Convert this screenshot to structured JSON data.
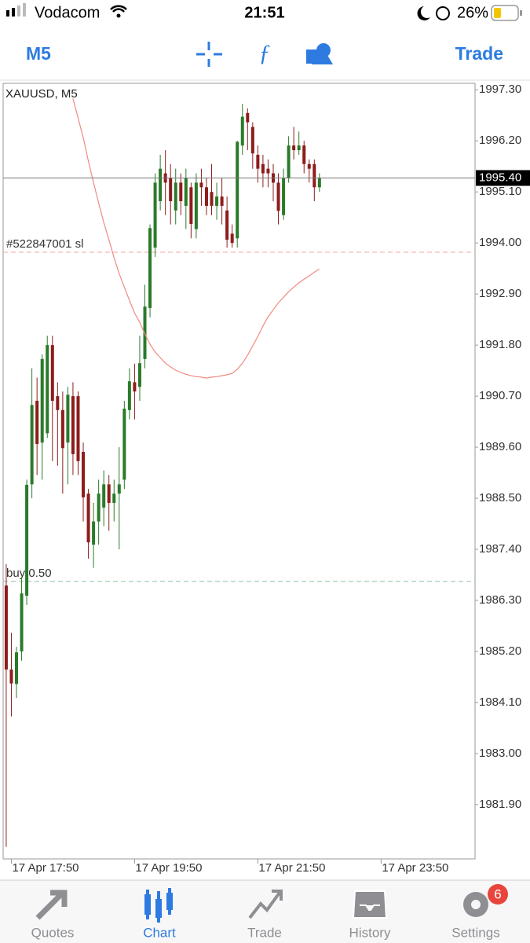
{
  "status_bar": {
    "carrier": "Vodacom",
    "time": "21:51",
    "battery": "26%"
  },
  "toolbar": {
    "timeframe": "M5",
    "trade": "Trade"
  },
  "chart_data": {
    "type": "candlestick",
    "title": "XAUUSD, M5",
    "open": [
      1986.62,
      1984.81,
      1984.5,
      1985.2,
      1986.4,
      1988.8,
      1990.6,
      1989.7,
      1989.9,
      1991.8,
      1990.7,
      1990.4,
      1989.7,
      1990.7,
      1990.7,
      1989.5,
      1988.6,
      1987.5,
      1988.0,
      1988.3,
      1988.8,
      1988.4,
      1988.6,
      1988.9,
      1990.4,
      1991.0,
      1990.9,
      1991.5,
      1992.6,
      1993.9,
      1994.9,
      1995.5,
      1995.4,
      1994.7,
      1995.3,
      1994.8,
      1995.2,
      1994.3,
      1995.3,
      1995.2,
      1995.1,
      1994.8,
      1995.0,
      1994.7,
      1994.2,
      1994.1,
      1996.1,
      1996.8,
      1996.5,
      1995.9,
      1995.7,
      1995.6,
      1995.5,
      1995.3,
      1994.6,
      1995.4,
      1996.1,
      1996.0,
      1996.1,
      1995.7,
      1995.7,
      1995.2
    ],
    "high": [
      1987.08,
      1985.6,
      1985.3,
      1986.8,
      1988.9,
      1991.3,
      1991.1,
      1991.6,
      1992.0,
      1992.0,
      1991.0,
      1990.8,
      1990.9,
      1991.0,
      1990.8,
      1989.7,
      1988.7,
      1988.4,
      1988.9,
      1989.1,
      1989.0,
      1988.9,
      1989.6,
      1990.6,
      1991.3,
      1991.4,
      1992.0,
      1993.1,
      1994.4,
      1995.5,
      1995.9,
      1996.0,
      1995.7,
      1995.6,
      1995.5,
      1995.6,
      1995.3,
      1995.5,
      1995.6,
      1995.4,
      1995.7,
      1995.3,
      1995.4,
      1995.0,
      1994.4,
      1996.2,
      1997.0,
      1996.9,
      1996.6,
      1996.1,
      1995.9,
      1995.8,
      1995.7,
      1995.5,
      1995.6,
      1996.3,
      1996.5,
      1996.4,
      1996.2,
      1995.8,
      1995.8,
      1995.5
    ],
    "low": [
      1980.99,
      1983.8,
      1984.2,
      1985.0,
      1986.2,
      1988.5,
      1989.0,
      1988.9,
      1989.8,
      1989.3,
      1989.2,
      1988.6,
      1988.8,
      1989.0,
      1989.0,
      1988.0,
      1987.2,
      1987.0,
      1987.5,
      1987.9,
      1987.8,
      1988.0,
      1987.4,
      1988.7,
      1990.2,
      1990.2,
      1990.6,
      1991.3,
      1992.4,
      1993.7,
      1994.7,
      1994.6,
      1994.4,
      1994.4,
      1994.6,
      1994.3,
      1994.1,
      1994.1,
      1994.8,
      1994.6,
      1994.6,
      1994.5,
      1994.4,
      1993.9,
      1993.9,
      1993.9,
      1995.9,
      1996.0,
      1995.6,
      1995.3,
      1995.2,
      1995.2,
      1994.9,
      1994.4,
      1994.5,
      1995.3,
      1995.8,
      1995.9,
      1995.5,
      1995.3,
      1994.9,
      1995.1
    ],
    "close": [
      1984.81,
      1984.51,
      1985.18,
      1986.45,
      1988.79,
      1990.51,
      1989.67,
      1991.5,
      1991.8,
      1990.6,
      1990.4,
      1989.58,
      1990.73,
      1989.45,
      1989.3,
      1988.52,
      1987.55,
      1988.0,
      1988.6,
      1988.8,
      1988.4,
      1988.6,
      1988.8,
      1990.43,
      1991.02,
      1990.8,
      1991.41,
      1992.63,
      1994.32,
      1995.3,
      1995.6,
      1995.3,
      1994.9,
      1995.3,
      1994.9,
      1995.4,
      1994.41,
      1995.3,
      1995.2,
      1994.8,
      1994.8,
      1995.0,
      1994.8,
      1994.07,
      1994.0,
      1996.18,
      1996.72,
      1996.6,
      1995.93,
      1995.6,
      1995.5,
      1995.5,
      1995.3,
      1994.69,
      1995.4,
      1996.1,
      1996.0,
      1996.1,
      1995.7,
      1995.6,
      1995.2,
      1995.4
    ],
    "up_color": "#2a7a2a",
    "down_color": "#8e1c1c",
    "ma": {
      "color": "#f08a80",
      "values": [
        null,
        null,
        null,
        null,
        null,
        null,
        null,
        null,
        null,
        null,
        null,
        null,
        null,
        1997.11,
        1996.69,
        1996.27,
        1995.76,
        1995.3,
        1994.86,
        1994.44,
        1994.07,
        1993.68,
        1993.34,
        1993.05,
        1992.76,
        1992.49,
        1992.29,
        1992.04,
        1991.82,
        1991.65,
        1991.53,
        1991.41,
        1991.33,
        1991.26,
        1991.21,
        1991.17,
        1991.14,
        1991.12,
        1991.11,
        1991.09,
        1991.11,
        1991.12,
        1991.14,
        1991.16,
        1991.19,
        1991.28,
        1991.41,
        1991.58,
        1991.78,
        1991.99,
        1992.21,
        1992.41,
        1992.56,
        1992.71,
        1992.83,
        1992.95,
        1993.05,
        1993.14,
        1993.22,
        1993.29,
        1993.37,
        1993.44
      ]
    },
    "xlim": [
      -0.6,
      91.3
    ],
    "xticks": [
      {
        "value": 1,
        "label": "17 Apr 17:50"
      },
      {
        "value": 25,
        "label": "17 Apr 19:50"
      },
      {
        "value": 49,
        "label": "17 Apr 21:50"
      },
      {
        "value": 73,
        "label": "17 Apr 23:50"
      }
    ],
    "ylim": [
      1980.73,
      1997.44
    ],
    "yticks": [
      {
        "value": 1997.3,
        "label": "1997.30"
      },
      {
        "value": 1996.2,
        "label": "1996.20"
      },
      {
        "value": 1995.1,
        "label": "1995.10"
      },
      {
        "value": 1994.0,
        "label": "1994.00"
      },
      {
        "value": 1992.9,
        "label": "1992.90"
      },
      {
        "value": 1991.8,
        "label": "1991.80"
      },
      {
        "value": 1990.7,
        "label": "1990.70"
      },
      {
        "value": 1989.6,
        "label": "1989.60"
      },
      {
        "value": 1988.5,
        "label": "1988.50"
      },
      {
        "value": 1987.4,
        "label": "1987.40"
      },
      {
        "value": 1986.3,
        "label": "1986.30"
      },
      {
        "value": 1985.2,
        "label": "1985.20"
      },
      {
        "value": 1984.1,
        "label": "1984.10"
      },
      {
        "value": 1983.0,
        "label": "1983.00"
      },
      {
        "value": 1981.9,
        "label": "1981.90"
      }
    ],
    "current_price": {
      "value": 1995.4,
      "label": "1995.40"
    },
    "levels": [
      {
        "label": "#522847001 sl",
        "value": 1993.8,
        "color": "#f4a6a0"
      },
      {
        "label": "buy 0.50",
        "value": 1986.71,
        "color": "#8fbf9f"
      }
    ]
  },
  "tab_bar": {
    "tabs": [
      {
        "label": "Quotes"
      },
      {
        "label": "Chart",
        "active": true
      },
      {
        "label": "Trade"
      },
      {
        "label": "History"
      },
      {
        "label": "Settings"
      }
    ],
    "badge": 6
  }
}
